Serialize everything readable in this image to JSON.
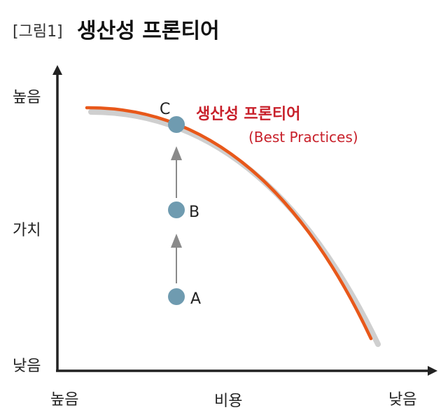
{
  "title": {
    "prefix": "[그림1]",
    "main": "생산성 프론티어"
  },
  "axes": {
    "y_label": "가치",
    "y_high": "높음",
    "y_low": "낮음",
    "x_label": "비용",
    "x_high": "높음",
    "x_low": "낮음"
  },
  "frontier": {
    "label": "생산성 프론티어",
    "sublabel": "(Best Practices)",
    "color": "#e8581a",
    "shadow_color": "#cfcfcf"
  },
  "points": [
    {
      "id": "A",
      "label": "A"
    },
    {
      "id": "B",
      "label": "B"
    },
    {
      "id": "C",
      "label": "C"
    }
  ],
  "colors": {
    "point": "#6f9bb0",
    "arrow": "#8a8a8a",
    "axis": "#222222",
    "label_red": "#c8202a",
    "text": "#222222"
  }
}
